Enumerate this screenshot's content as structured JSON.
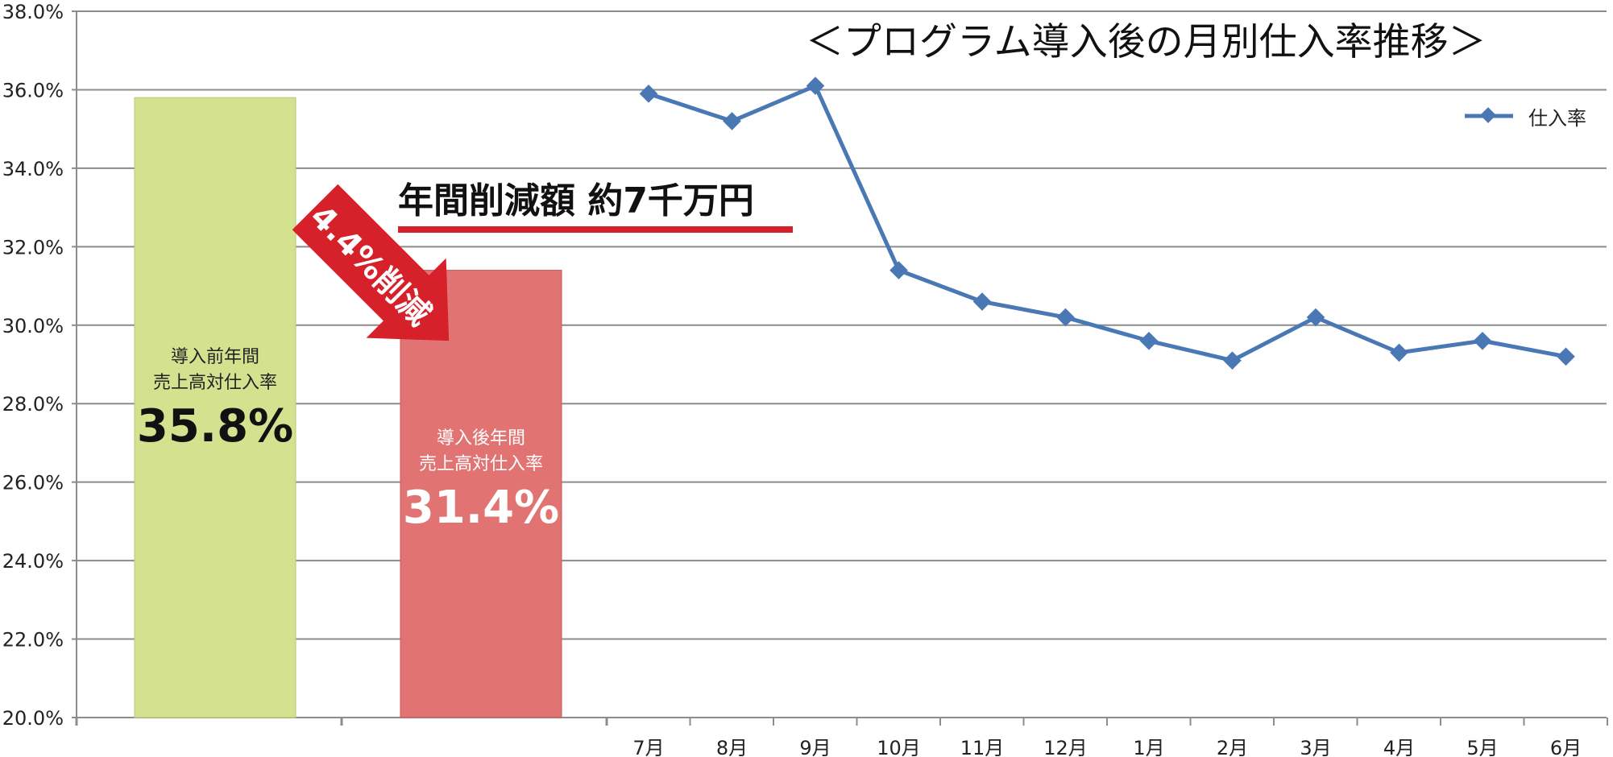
{
  "chart_data": {
    "type": "bar+line",
    "title": "＜プログラム導入後の月別仕入率推移＞",
    "ylim": [
      20,
      38
    ],
    "y_ticks": [
      "20.0%",
      "22.0%",
      "24.0%",
      "26.0%",
      "28.0%",
      "30.0%",
      "32.0%",
      "34.0%",
      "36.0%",
      "38.0%"
    ],
    "grid": true,
    "legend_position": "top-right",
    "bars": [
      {
        "label_line1": "導入前年間",
        "label_line2": "売上高対仕入率",
        "value_label": "35.8%",
        "value": 35.8,
        "color": "#d4e28f"
      },
      {
        "label_line1": "導入後年間",
        "label_line2": "売上高対仕入率",
        "value_label": "31.4%",
        "value": 31.4,
        "color": "#e27373"
      }
    ],
    "line": {
      "name": "仕入率",
      "color": "#4a78b4",
      "categories": [
        "7月",
        "8月",
        "9月",
        "10月",
        "11月",
        "12月",
        "1月",
        "2月",
        "3月",
        "4月",
        "5月",
        "6月"
      ],
      "values": [
        35.9,
        35.2,
        36.1,
        31.4,
        30.6,
        30.2,
        29.6,
        29.1,
        30.2,
        29.3,
        29.6,
        29.2
      ]
    },
    "annotations": {
      "arrow_text": "4.4%削減",
      "arrow_color": "#d6202a",
      "headline": "年間削減額 約7千万円",
      "underline_color": "#d6202a"
    }
  }
}
